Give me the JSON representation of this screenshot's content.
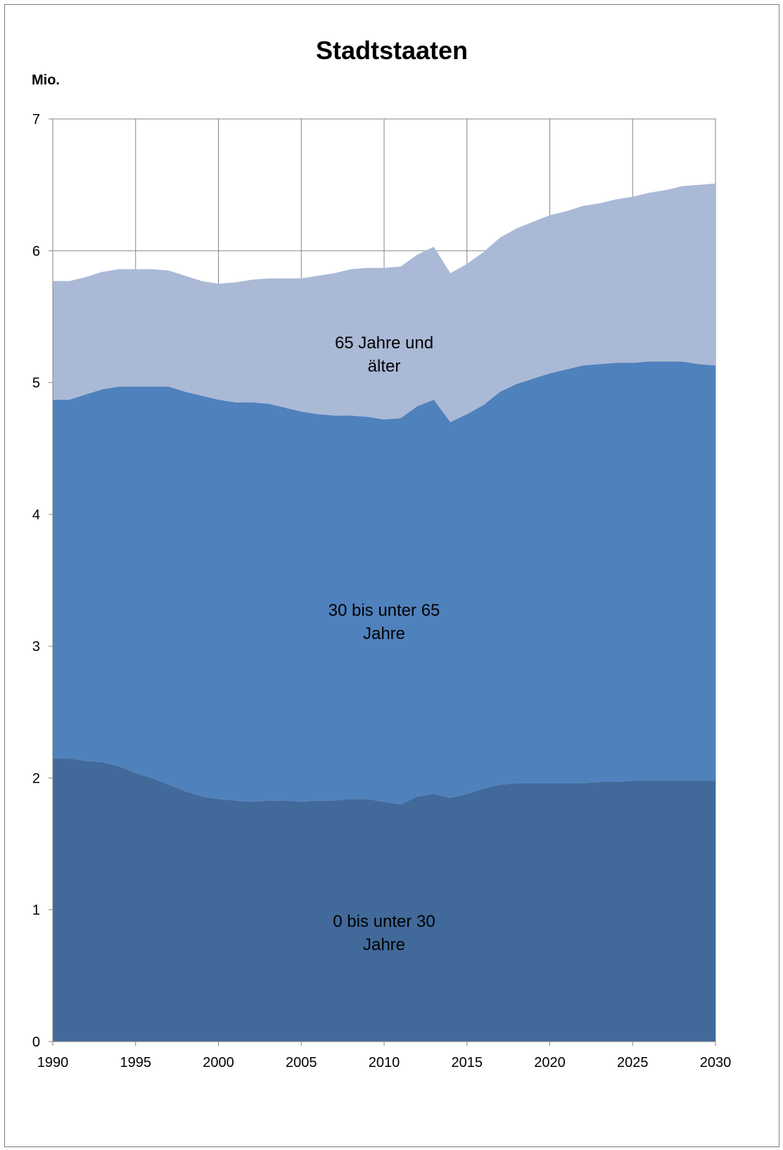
{
  "chart_data": {
    "type": "area",
    "stacked": true,
    "title": "Stadtstaaten",
    "ylabel": "Mio.",
    "xlabel": "",
    "xlim": [
      1990,
      2030
    ],
    "ylim": [
      0,
      7
    ],
    "x_ticks": [
      "1990",
      "1995",
      "2000",
      "2005",
      "2010",
      "2015",
      "2020",
      "2025",
      "2030"
    ],
    "y_ticks": [
      "0",
      "1",
      "2",
      "3",
      "4",
      "5",
      "6",
      "7"
    ],
    "grid": true,
    "legend": "inline",
    "x": [
      1990,
      1991,
      1992,
      1993,
      1994,
      1995,
      1996,
      1997,
      1998,
      1999,
      2000,
      2001,
      2002,
      2003,
      2004,
      2005,
      2006,
      2007,
      2008,
      2009,
      2010,
      2011,
      2012,
      2013,
      2014,
      2015,
      2016,
      2017,
      2018,
      2019,
      2020,
      2021,
      2022,
      2023,
      2024,
      2025,
      2026,
      2027,
      2028,
      2029,
      2030
    ],
    "series": [
      {
        "name": "0 bis unter 30 Jahre",
        "label_lines": [
          "0 bis unter 30",
          "Jahre"
        ],
        "label_at": [
          2010,
          0.87
        ],
        "color": "#416a9b",
        "values": [
          2.15,
          2.15,
          2.13,
          2.12,
          2.09,
          2.04,
          2.0,
          1.95,
          1.9,
          1.86,
          1.84,
          1.83,
          1.82,
          1.83,
          1.83,
          1.82,
          1.83,
          1.83,
          1.84,
          1.84,
          1.82,
          1.8,
          1.86,
          1.88,
          1.85,
          1.88,
          1.92,
          1.95,
          1.96,
          1.96,
          1.96,
          1.96,
          1.96,
          1.97,
          1.97,
          1.98,
          1.98,
          1.98,
          1.98,
          1.98,
          1.98
        ]
      },
      {
        "name": "30 bis unter 65 Jahre",
        "label_lines": [
          "30 bis unter 65",
          "Jahre"
        ],
        "label_at": [
          2010,
          3.23
        ],
        "color": "#4f81bd",
        "values": [
          2.72,
          2.72,
          2.78,
          2.83,
          2.88,
          2.93,
          2.97,
          3.02,
          3.03,
          3.04,
          3.03,
          3.02,
          3.03,
          3.01,
          2.98,
          2.96,
          2.93,
          2.92,
          2.91,
          2.9,
          2.9,
          2.93,
          2.96,
          2.99,
          2.85,
          2.88,
          2.91,
          2.98,
          3.03,
          3.07,
          3.11,
          3.14,
          3.17,
          3.17,
          3.18,
          3.17,
          3.18,
          3.18,
          3.18,
          3.16,
          3.15
        ]
      },
      {
        "name": "65 Jahre und älter",
        "label_lines": [
          "65 Jahre und",
          "älter"
        ],
        "label_at": [
          2010,
          5.26
        ],
        "color": "#aab9d6",
        "values": [
          0.9,
          0.9,
          0.89,
          0.89,
          0.89,
          0.89,
          0.89,
          0.88,
          0.88,
          0.87,
          0.88,
          0.91,
          0.93,
          0.95,
          0.98,
          1.01,
          1.05,
          1.08,
          1.11,
          1.13,
          1.15,
          1.15,
          1.15,
          1.16,
          1.13,
          1.14,
          1.16,
          1.17,
          1.18,
          1.19,
          1.2,
          1.2,
          1.21,
          1.22,
          1.24,
          1.26,
          1.28,
          1.3,
          1.33,
          1.36,
          1.38
        ]
      }
    ]
  }
}
